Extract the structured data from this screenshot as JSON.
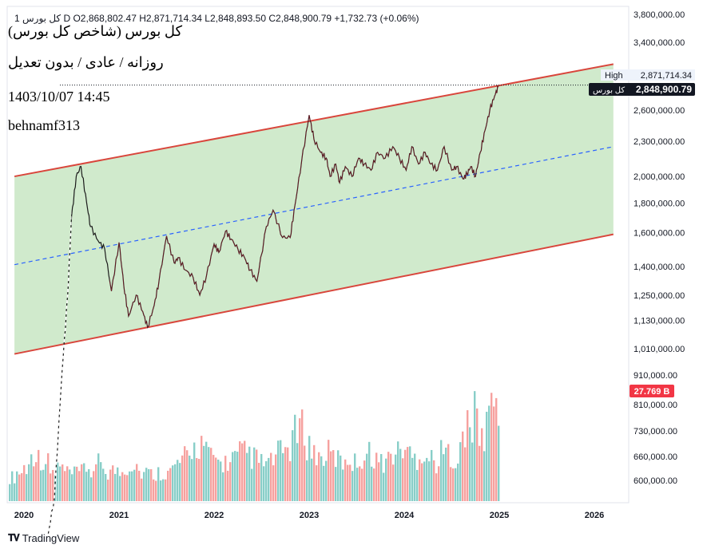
{
  "header": {
    "symbol_short": "1 ...",
    "ohlc_text": "1 کل بورس  D  O2,868,802.47  H2,871,714.34  L2,848,893.50  C2,848,900.79  +1,732.73 (+0.06%)",
    "title": "کل بورس (شاخص کل بورس)",
    "subtitle": "روزانه / عادی / بدون تعدیل",
    "datetime": "1403/10/07 14:45",
    "author": "behnamf313"
  },
  "price_labels": {
    "high_label": "High",
    "high_value": "2,871,714.34",
    "last_symbol": "کل بورس",
    "last_value": "2,848,900.79",
    "volume_value": "27.769 B"
  },
  "footer": {
    "brand": "TradingView"
  },
  "colors": {
    "channel_fill": "#c8e6c3",
    "channel_line": "#d9463c",
    "midline": "#2962ff",
    "price_line": "#1b1b1b",
    "up_candle": "#26a69a",
    "down_candle": "#ef5350",
    "last_label_bg": "#131722",
    "volume_label_bg": "#f23645"
  },
  "chart_data": {
    "type": "line",
    "log_scale": true,
    "x_axis": {
      "ticks": [
        "2020",
        "2021",
        "2022",
        "2023",
        "2024",
        "2025",
        "2026"
      ]
    },
    "y_axis": {
      "ticks": [
        "3,800,000.00",
        "3,400,000.00",
        "2,600,000.00",
        "2,300,000.00",
        "2,000,000.00",
        "1,800,000.00",
        "1,600,000.00",
        "1,400,000.00",
        "1,250,000.00",
        "1,130,000.00",
        "1,010,000.00",
        "910,000.00",
        "810,000.00",
        "730,000.00",
        "660,000.00",
        "600,000.00"
      ],
      "range": [
        560000,
        3950000
      ]
    },
    "series": [
      {
        "x": [
          2020.25,
          2020.32,
          2020.4,
          2020.46,
          2020.5,
          2020.55,
          2020.6,
          2020.66,
          2020.7,
          2020.78,
          2020.85,
          2020.92,
          2021.0,
          2021.05,
          2021.1,
          2021.18,
          2021.25,
          2021.3,
          2021.37,
          2021.42,
          2021.5,
          2021.58,
          2021.62,
          2021.7,
          2021.78,
          2021.85,
          2021.92,
          2022.0,
          2022.05,
          2022.12,
          2022.18,
          2022.25,
          2022.32,
          2022.38,
          2022.45,
          2022.55,
          2022.62,
          2022.72,
          2022.8,
          2022.85,
          2022.92,
          2023.0,
          2023.05,
          2023.12,
          2023.18,
          2023.22,
          2023.28,
          2023.32,
          2023.38,
          2023.45,
          2023.52,
          2023.58,
          2023.65,
          2023.72,
          2023.8,
          2023.88,
          2023.95,
          2024.02,
          2024.08,
          2024.15,
          2024.22,
          2024.28,
          2024.35,
          2024.42,
          2024.5,
          2024.55,
          2024.62,
          2024.66,
          2024.7,
          2024.75,
          2024.8,
          2024.85,
          2024.9,
          2024.95,
          2024.99
        ],
        "y": [
          480000,
          560000,
          920000,
          1250000,
          1700000,
          2000000,
          2080000,
          1800000,
          1640000,
          1550000,
          1500000,
          1270000,
          1540000,
          1300000,
          1150000,
          1250000,
          1170000,
          1100000,
          1200000,
          1320000,
          1580000,
          1420000,
          1450000,
          1380000,
          1340000,
          1250000,
          1350000,
          1530000,
          1480000,
          1610000,
          1560000,
          1500000,
          1450000,
          1380000,
          1320000,
          1640000,
          1750000,
          1570000,
          1570000,
          1780000,
          2120000,
          2550000,
          2320000,
          2200000,
          2150000,
          2000000,
          2100000,
          1950000,
          2080000,
          2000000,
          2150000,
          2100000,
          2050000,
          2200000,
          2150000,
          2250000,
          2150000,
          2050000,
          2250000,
          2100000,
          2200000,
          2100000,
          2050000,
          2250000,
          2050000,
          2080000,
          1980000,
          2020000,
          2080000,
          2000000,
          2200000,
          2400000,
          2600000,
          2750000,
          2848900
        ]
      }
    ],
    "channel": {
      "upper": {
        "x": [
          2019.9,
          2026.2
        ],
        "y": [
          2000000,
          3120000
        ]
      },
      "lower": {
        "x": [
          2019.9,
          2026.2
        ],
        "y": [
          990000,
          1590000
        ]
      },
      "mid": {
        "x": [
          2019.9,
          2026.2
        ],
        "y": [
          1410000,
          2250000
        ]
      }
    },
    "volume": {
      "last_value_billion": 27.769,
      "relative_height": [
        0.25,
        0.3,
        0.35,
        0.5,
        0.45,
        0.4,
        0.3,
        0.35,
        0.3,
        0.28,
        0.3,
        0.35,
        0.3,
        0.4,
        0.3,
        0.32,
        0.3,
        0.35,
        0.4,
        0.3,
        0.3,
        0.28,
        0.3,
        0.3,
        0.35,
        0.4,
        0.45,
        0.55,
        0.6,
        0.5,
        0.45,
        0.4,
        0.4,
        0.45,
        0.5,
        0.5,
        0.45,
        0.4,
        0.4,
        0.45,
        0.5,
        0.55,
        0.7,
        0.75,
        0.6,
        0.5,
        0.45,
        0.5,
        0.45,
        0.4,
        0.45,
        0.4,
        0.45,
        0.5,
        0.45,
        0.4,
        0.45,
        0.5,
        0.55,
        0.5,
        0.45,
        0.5,
        0.45,
        0.4,
        0.5,
        0.5,
        0.45,
        0.6,
        0.8,
        0.9,
        0.65,
        0.95,
        1.0
      ]
    }
  }
}
